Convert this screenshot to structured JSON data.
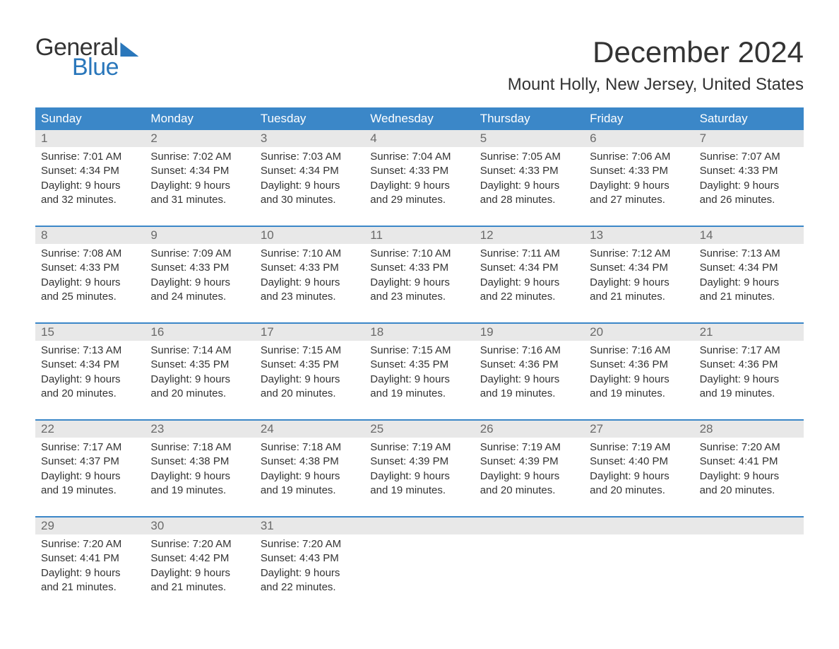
{
  "logo": {
    "line1": "General",
    "line2": "Blue"
  },
  "title": "December 2024",
  "location": "Mount Holly, New Jersey, United States",
  "colors": {
    "header_bg": "#3b87c8",
    "header_text": "#ffffff",
    "daynum_bg": "#e8e8e8",
    "daynum_text": "#6a6a6a",
    "body_text": "#333333",
    "accent": "#2a77bb",
    "week_border": "#3b87c8",
    "page_bg": "#ffffff"
  },
  "typography": {
    "title_fontsize": 42,
    "location_fontsize": 24,
    "dayname_fontsize": 17,
    "daynum_fontsize": 17,
    "cell_fontsize": 15,
    "logo_fontsize": 34
  },
  "dayNames": [
    "Sunday",
    "Monday",
    "Tuesday",
    "Wednesday",
    "Thursday",
    "Friday",
    "Saturday"
  ],
  "weeks": [
    [
      {
        "n": "1",
        "sunrise": "7:01 AM",
        "sunset": "4:34 PM",
        "dl1": "Daylight: 9 hours",
        "dl2": "and 32 minutes."
      },
      {
        "n": "2",
        "sunrise": "7:02 AM",
        "sunset": "4:34 PM",
        "dl1": "Daylight: 9 hours",
        "dl2": "and 31 minutes."
      },
      {
        "n": "3",
        "sunrise": "7:03 AM",
        "sunset": "4:34 PM",
        "dl1": "Daylight: 9 hours",
        "dl2": "and 30 minutes."
      },
      {
        "n": "4",
        "sunrise": "7:04 AM",
        "sunset": "4:33 PM",
        "dl1": "Daylight: 9 hours",
        "dl2": "and 29 minutes."
      },
      {
        "n": "5",
        "sunrise": "7:05 AM",
        "sunset": "4:33 PM",
        "dl1": "Daylight: 9 hours",
        "dl2": "and 28 minutes."
      },
      {
        "n": "6",
        "sunrise": "7:06 AM",
        "sunset": "4:33 PM",
        "dl1": "Daylight: 9 hours",
        "dl2": "and 27 minutes."
      },
      {
        "n": "7",
        "sunrise": "7:07 AM",
        "sunset": "4:33 PM",
        "dl1": "Daylight: 9 hours",
        "dl2": "and 26 minutes."
      }
    ],
    [
      {
        "n": "8",
        "sunrise": "7:08 AM",
        "sunset": "4:33 PM",
        "dl1": "Daylight: 9 hours",
        "dl2": "and 25 minutes."
      },
      {
        "n": "9",
        "sunrise": "7:09 AM",
        "sunset": "4:33 PM",
        "dl1": "Daylight: 9 hours",
        "dl2": "and 24 minutes."
      },
      {
        "n": "10",
        "sunrise": "7:10 AM",
        "sunset": "4:33 PM",
        "dl1": "Daylight: 9 hours",
        "dl2": "and 23 minutes."
      },
      {
        "n": "11",
        "sunrise": "7:10 AM",
        "sunset": "4:33 PM",
        "dl1": "Daylight: 9 hours",
        "dl2": "and 23 minutes."
      },
      {
        "n": "12",
        "sunrise": "7:11 AM",
        "sunset": "4:34 PM",
        "dl1": "Daylight: 9 hours",
        "dl2": "and 22 minutes."
      },
      {
        "n": "13",
        "sunrise": "7:12 AM",
        "sunset": "4:34 PM",
        "dl1": "Daylight: 9 hours",
        "dl2": "and 21 minutes."
      },
      {
        "n": "14",
        "sunrise": "7:13 AM",
        "sunset": "4:34 PM",
        "dl1": "Daylight: 9 hours",
        "dl2": "and 21 minutes."
      }
    ],
    [
      {
        "n": "15",
        "sunrise": "7:13 AM",
        "sunset": "4:34 PM",
        "dl1": "Daylight: 9 hours",
        "dl2": "and 20 minutes."
      },
      {
        "n": "16",
        "sunrise": "7:14 AM",
        "sunset": "4:35 PM",
        "dl1": "Daylight: 9 hours",
        "dl2": "and 20 minutes."
      },
      {
        "n": "17",
        "sunrise": "7:15 AM",
        "sunset": "4:35 PM",
        "dl1": "Daylight: 9 hours",
        "dl2": "and 20 minutes."
      },
      {
        "n": "18",
        "sunrise": "7:15 AM",
        "sunset": "4:35 PM",
        "dl1": "Daylight: 9 hours",
        "dl2": "and 19 minutes."
      },
      {
        "n": "19",
        "sunrise": "7:16 AM",
        "sunset": "4:36 PM",
        "dl1": "Daylight: 9 hours",
        "dl2": "and 19 minutes."
      },
      {
        "n": "20",
        "sunrise": "7:16 AM",
        "sunset": "4:36 PM",
        "dl1": "Daylight: 9 hours",
        "dl2": "and 19 minutes."
      },
      {
        "n": "21",
        "sunrise": "7:17 AM",
        "sunset": "4:36 PM",
        "dl1": "Daylight: 9 hours",
        "dl2": "and 19 minutes."
      }
    ],
    [
      {
        "n": "22",
        "sunrise": "7:17 AM",
        "sunset": "4:37 PM",
        "dl1": "Daylight: 9 hours",
        "dl2": "and 19 minutes."
      },
      {
        "n": "23",
        "sunrise": "7:18 AM",
        "sunset": "4:38 PM",
        "dl1": "Daylight: 9 hours",
        "dl2": "and 19 minutes."
      },
      {
        "n": "24",
        "sunrise": "7:18 AM",
        "sunset": "4:38 PM",
        "dl1": "Daylight: 9 hours",
        "dl2": "and 19 minutes."
      },
      {
        "n": "25",
        "sunrise": "7:19 AM",
        "sunset": "4:39 PM",
        "dl1": "Daylight: 9 hours",
        "dl2": "and 19 minutes."
      },
      {
        "n": "26",
        "sunrise": "7:19 AM",
        "sunset": "4:39 PM",
        "dl1": "Daylight: 9 hours",
        "dl2": "and 20 minutes."
      },
      {
        "n": "27",
        "sunrise": "7:19 AM",
        "sunset": "4:40 PM",
        "dl1": "Daylight: 9 hours",
        "dl2": "and 20 minutes."
      },
      {
        "n": "28",
        "sunrise": "7:20 AM",
        "sunset": "4:41 PM",
        "dl1": "Daylight: 9 hours",
        "dl2": "and 20 minutes."
      }
    ],
    [
      {
        "n": "29",
        "sunrise": "7:20 AM",
        "sunset": "4:41 PM",
        "dl1": "Daylight: 9 hours",
        "dl2": "and 21 minutes."
      },
      {
        "n": "30",
        "sunrise": "7:20 AM",
        "sunset": "4:42 PM",
        "dl1": "Daylight: 9 hours",
        "dl2": "and 21 minutes."
      },
      {
        "n": "31",
        "sunrise": "7:20 AM",
        "sunset": "4:43 PM",
        "dl1": "Daylight: 9 hours",
        "dl2": "and 22 minutes."
      },
      null,
      null,
      null,
      null
    ]
  ],
  "labels": {
    "sunrise_prefix": "Sunrise: ",
    "sunset_prefix": "Sunset: "
  }
}
